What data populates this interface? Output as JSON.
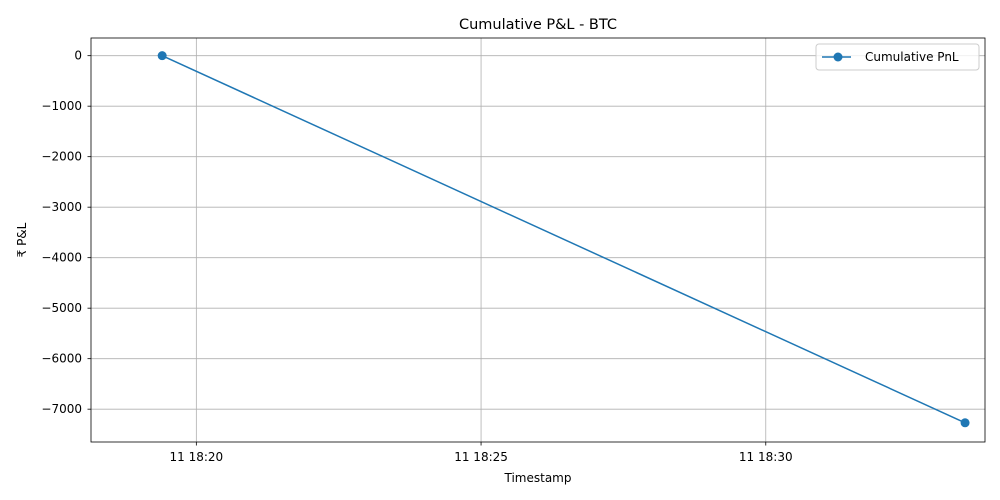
{
  "chart_data": {
    "type": "line",
    "title": "Cumulative P&L - BTC",
    "xlabel": "Timestamp",
    "ylabel": "₹ P&L",
    "x_unit": "time (HH:MM)",
    "xlim": [
      "18:18.15",
      "18:33.85"
    ],
    "ylim": [
      -7650,
      350
    ],
    "x_ticks": [
      {
        "value": "18:20",
        "label": "11 18:20"
      },
      {
        "value": "18:25",
        "label": "11 18:25"
      },
      {
        "value": "18:30",
        "label": "11 18:30"
      }
    ],
    "y_ticks": [
      0,
      -1000,
      -2000,
      -3000,
      -4000,
      -5000,
      -6000,
      -7000
    ],
    "grid": true,
    "legend": {
      "position": "top-right"
    },
    "series": [
      {
        "name": "Cumulative PnL",
        "color": "#1f77b4",
        "marker": "circle",
        "points": [
          {
            "x": "18:19.4",
            "y": 0
          },
          {
            "x": "18:33.5",
            "y": -7270
          }
        ]
      }
    ]
  }
}
